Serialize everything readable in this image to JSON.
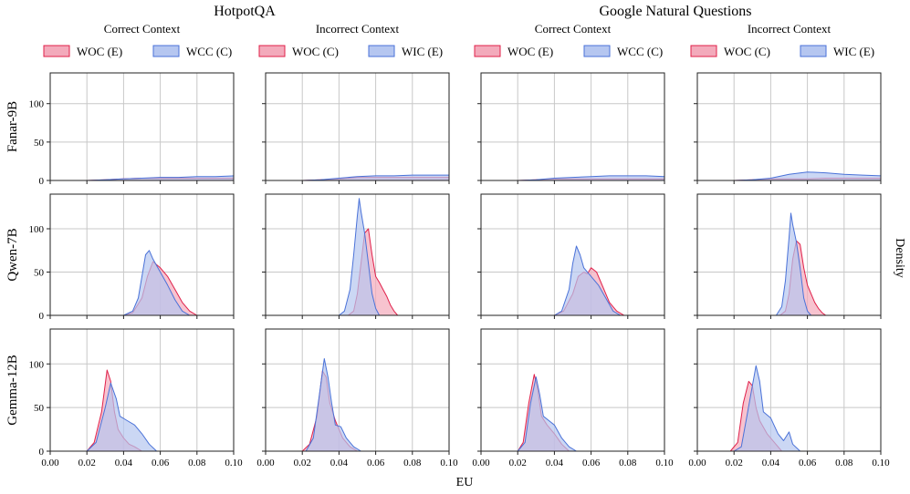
{
  "chart_data": {
    "type": "area",
    "kind": "kernel density estimate grid",
    "datasets": [
      "HotpotQA",
      "Google Natural Questions"
    ],
    "xlabel": "EU",
    "ylabel": "Density",
    "xlim": [
      0,
      0.1
    ],
    "ylim": [
      0,
      140
    ],
    "xticks": [
      "0.00",
      "0.02",
      "0.04",
      "0.06",
      "0.08",
      "0.10"
    ],
    "yticks": [
      "0",
      "50",
      "100"
    ],
    "colors": {
      "woc": "#e0204a",
      "woc_fill": "#f3aabb",
      "other": "#4a72d8",
      "other_fill": "#b5c6f0"
    },
    "columns": [
      {
        "dataset": "HotpotQA",
        "context": "Correct Context",
        "legend": [
          "WOC (E)",
          "WCC (C)"
        ]
      },
      {
        "dataset": "HotpotQA",
        "context": "Incorrect Context",
        "legend": [
          "WOC (C)",
          "WIC (E)"
        ]
      },
      {
        "dataset": "Google Natural Questions",
        "context": "Correct Context",
        "legend": [
          "WOC (E)",
          "WCC (C)"
        ]
      },
      {
        "dataset": "Google Natural Questions",
        "context": "Incorrect Context",
        "legend": [
          "WOC (C)",
          "WIC (E)"
        ]
      }
    ],
    "rows": [
      "Fanar-9B",
      "Qwen-7B",
      "Gemma-12B"
    ],
    "panels": [
      [
        {
          "woc": [
            [
              0.02,
              0
            ],
            [
              0.03,
              1
            ],
            [
              0.04,
              2
            ],
            [
              0.05,
              3
            ],
            [
              0.06,
              3
            ],
            [
              0.07,
              3
            ],
            [
              0.08,
              3
            ],
            [
              0.09,
              3
            ],
            [
              0.1,
              3
            ]
          ],
          "other": [
            [
              0.02,
              0
            ],
            [
              0.03,
              1
            ],
            [
              0.04,
              2
            ],
            [
              0.05,
              3
            ],
            [
              0.06,
              4
            ],
            [
              0.07,
              4
            ],
            [
              0.08,
              5
            ],
            [
              0.09,
              5
            ],
            [
              0.1,
              6
            ]
          ]
        },
        {
          "woc": [
            [
              0.02,
              0
            ],
            [
              0.03,
              1
            ],
            [
              0.04,
              2
            ],
            [
              0.05,
              4
            ],
            [
              0.06,
              4
            ],
            [
              0.07,
              4
            ],
            [
              0.08,
              4
            ],
            [
              0.09,
              4
            ],
            [
              0.1,
              4
            ]
          ],
          "other": [
            [
              0.02,
              0
            ],
            [
              0.03,
              1
            ],
            [
              0.04,
              3
            ],
            [
              0.05,
              5
            ],
            [
              0.06,
              6
            ],
            [
              0.07,
              6
            ],
            [
              0.08,
              7
            ],
            [
              0.09,
              7
            ],
            [
              0.1,
              7
            ]
          ]
        },
        {
          "woc": [
            [
              0.02,
              0
            ],
            [
              0.03,
              1
            ],
            [
              0.04,
              2
            ],
            [
              0.05,
              2
            ],
            [
              0.06,
              2
            ],
            [
              0.07,
              2
            ],
            [
              0.08,
              2
            ],
            [
              0.09,
              2
            ],
            [
              0.1,
              2
            ]
          ],
          "other": [
            [
              0.02,
              0
            ],
            [
              0.03,
              1
            ],
            [
              0.04,
              3
            ],
            [
              0.05,
              4
            ],
            [
              0.06,
              5
            ],
            [
              0.07,
              6
            ],
            [
              0.08,
              6
            ],
            [
              0.09,
              6
            ],
            [
              0.1,
              5
            ]
          ]
        },
        {
          "woc": [
            [
              0.02,
              0
            ],
            [
              0.03,
              1
            ],
            [
              0.04,
              2
            ],
            [
              0.05,
              2
            ],
            [
              0.06,
              2
            ],
            [
              0.07,
              3
            ],
            [
              0.08,
              3
            ],
            [
              0.09,
              3
            ],
            [
              0.1,
              3
            ]
          ],
          "other": [
            [
              0.02,
              0
            ],
            [
              0.03,
              1
            ],
            [
              0.04,
              3
            ],
            [
              0.05,
              8
            ],
            [
              0.06,
              11
            ],
            [
              0.07,
              10
            ],
            [
              0.08,
              8
            ],
            [
              0.09,
              7
            ],
            [
              0.1,
              6
            ]
          ]
        }
      ],
      [
        {
          "woc": [
            [
              0.04,
              0
            ],
            [
              0.045,
              3
            ],
            [
              0.05,
              20
            ],
            [
              0.053,
              45
            ],
            [
              0.056,
              62
            ],
            [
              0.06,
              55
            ],
            [
              0.064,
              45
            ],
            [
              0.068,
              30
            ],
            [
              0.072,
              15
            ],
            [
              0.076,
              5
            ],
            [
              0.08,
              0
            ]
          ],
          "other": [
            [
              0.04,
              0
            ],
            [
              0.045,
              5
            ],
            [
              0.048,
              20
            ],
            [
              0.05,
              45
            ],
            [
              0.052,
              70
            ],
            [
              0.054,
              75
            ],
            [
              0.056,
              65
            ],
            [
              0.06,
              50
            ],
            [
              0.064,
              35
            ],
            [
              0.068,
              18
            ],
            [
              0.072,
              5
            ],
            [
              0.076,
              0
            ]
          ]
        },
        {
          "woc": [
            [
              0.045,
              0
            ],
            [
              0.048,
              5
            ],
            [
              0.05,
              25
            ],
            [
              0.052,
              60
            ],
            [
              0.054,
              95
            ],
            [
              0.056,
              100
            ],
            [
              0.058,
              70
            ],
            [
              0.06,
              45
            ],
            [
              0.062,
              38
            ],
            [
              0.064,
              30
            ],
            [
              0.066,
              22
            ],
            [
              0.068,
              12
            ],
            [
              0.07,
              5
            ],
            [
              0.072,
              0
            ]
          ],
          "other": [
            [
              0.04,
              0
            ],
            [
              0.043,
              5
            ],
            [
              0.046,
              30
            ],
            [
              0.048,
              70
            ],
            [
              0.05,
              115
            ],
            [
              0.051,
              135
            ],
            [
              0.052,
              120
            ],
            [
              0.054,
              95
            ],
            [
              0.056,
              60
            ],
            [
              0.058,
              25
            ],
            [
              0.06,
              8
            ],
            [
              0.062,
              0
            ]
          ]
        },
        {
          "woc": [
            [
              0.04,
              0
            ],
            [
              0.045,
              5
            ],
            [
              0.05,
              25
            ],
            [
              0.053,
              45
            ],
            [
              0.056,
              50
            ],
            [
              0.058,
              48
            ],
            [
              0.06,
              55
            ],
            [
              0.063,
              50
            ],
            [
              0.066,
              35
            ],
            [
              0.07,
              15
            ],
            [
              0.074,
              5
            ],
            [
              0.078,
              0
            ]
          ],
          "other": [
            [
              0.04,
              0
            ],
            [
              0.044,
              5
            ],
            [
              0.048,
              30
            ],
            [
              0.05,
              60
            ],
            [
              0.052,
              80
            ],
            [
              0.054,
              70
            ],
            [
              0.056,
              55
            ],
            [
              0.06,
              45
            ],
            [
              0.064,
              35
            ],
            [
              0.068,
              20
            ],
            [
              0.072,
              5
            ],
            [
              0.076,
              0
            ]
          ]
        },
        {
          "woc": [
            [
              0.045,
              0
            ],
            [
              0.048,
              5
            ],
            [
              0.05,
              25
            ],
            [
              0.052,
              65
            ],
            [
              0.054,
              86
            ],
            [
              0.056,
              82
            ],
            [
              0.058,
              55
            ],
            [
              0.06,
              35
            ],
            [
              0.062,
              25
            ],
            [
              0.064,
              15
            ],
            [
              0.066,
              8
            ],
            [
              0.068,
              3
            ],
            [
              0.07,
              0
            ]
          ],
          "other": [
            [
              0.043,
              0
            ],
            [
              0.046,
              10
            ],
            [
              0.048,
              40
            ],
            [
              0.05,
              90
            ],
            [
              0.051,
              118
            ],
            [
              0.052,
              105
            ],
            [
              0.054,
              85
            ],
            [
              0.056,
              55
            ],
            [
              0.058,
              20
            ],
            [
              0.06,
              5
            ],
            [
              0.062,
              0
            ]
          ]
        }
      ],
      [
        {
          "woc": [
            [
              0.02,
              0
            ],
            [
              0.024,
              10
            ],
            [
              0.028,
              45
            ],
            [
              0.031,
              93
            ],
            [
              0.033,
              80
            ],
            [
              0.035,
              45
            ],
            [
              0.037,
              25
            ],
            [
              0.04,
              15
            ],
            [
              0.043,
              8
            ],
            [
              0.046,
              5
            ],
            [
              0.05,
              0
            ]
          ],
          "other": [
            [
              0.02,
              0
            ],
            [
              0.025,
              10
            ],
            [
              0.03,
              50
            ],
            [
              0.033,
              78
            ],
            [
              0.036,
              60
            ],
            [
              0.038,
              40
            ],
            [
              0.042,
              35
            ],
            [
              0.046,
              30
            ],
            [
              0.05,
              20
            ],
            [
              0.054,
              8
            ],
            [
              0.058,
              0
            ]
          ]
        },
        {
          "woc": [
            [
              0.02,
              0
            ],
            [
              0.024,
              8
            ],
            [
              0.028,
              40
            ],
            [
              0.031,
              92
            ],
            [
              0.033,
              85
            ],
            [
              0.035,
              55
            ],
            [
              0.038,
              35
            ],
            [
              0.042,
              15
            ],
            [
              0.046,
              5
            ],
            [
              0.05,
              0
            ]
          ],
          "other": [
            [
              0.022,
              0
            ],
            [
              0.026,
              15
            ],
            [
              0.029,
              60
            ],
            [
              0.032,
              106
            ],
            [
              0.034,
              85
            ],
            [
              0.036,
              55
            ],
            [
              0.038,
              30
            ],
            [
              0.041,
              28
            ],
            [
              0.044,
              15
            ],
            [
              0.048,
              5
            ],
            [
              0.052,
              0
            ]
          ]
        },
        {
          "woc": [
            [
              0.02,
              0
            ],
            [
              0.023,
              10
            ],
            [
              0.026,
              55
            ],
            [
              0.029,
              88
            ],
            [
              0.031,
              70
            ],
            [
              0.033,
              40
            ],
            [
              0.036,
              30
            ],
            [
              0.04,
              20
            ],
            [
              0.044,
              8
            ],
            [
              0.048,
              0
            ]
          ],
          "other": [
            [
              0.02,
              0
            ],
            [
              0.024,
              10
            ],
            [
              0.027,
              55
            ],
            [
              0.03,
              85
            ],
            [
              0.032,
              65
            ],
            [
              0.034,
              40
            ],
            [
              0.037,
              35
            ],
            [
              0.04,
              30
            ],
            [
              0.044,
              15
            ],
            [
              0.048,
              5
            ],
            [
              0.052,
              0
            ]
          ]
        },
        {
          "woc": [
            [
              0.018,
              0
            ],
            [
              0.022,
              10
            ],
            [
              0.025,
              55
            ],
            [
              0.028,
              80
            ],
            [
              0.03,
              75
            ],
            [
              0.032,
              50
            ],
            [
              0.034,
              35
            ],
            [
              0.038,
              20
            ],
            [
              0.042,
              10
            ],
            [
              0.046,
              0
            ]
          ],
          "other": [
            [
              0.02,
              0
            ],
            [
              0.024,
              5
            ],
            [
              0.027,
              40
            ],
            [
              0.03,
              75
            ],
            [
              0.032,
              98
            ],
            [
              0.034,
              80
            ],
            [
              0.036,
              45
            ],
            [
              0.04,
              38
            ],
            [
              0.044,
              20
            ],
            [
              0.047,
              12
            ],
            [
              0.05,
              22
            ],
            [
              0.052,
              8
            ],
            [
              0.056,
              0
            ]
          ]
        }
      ]
    ]
  }
}
